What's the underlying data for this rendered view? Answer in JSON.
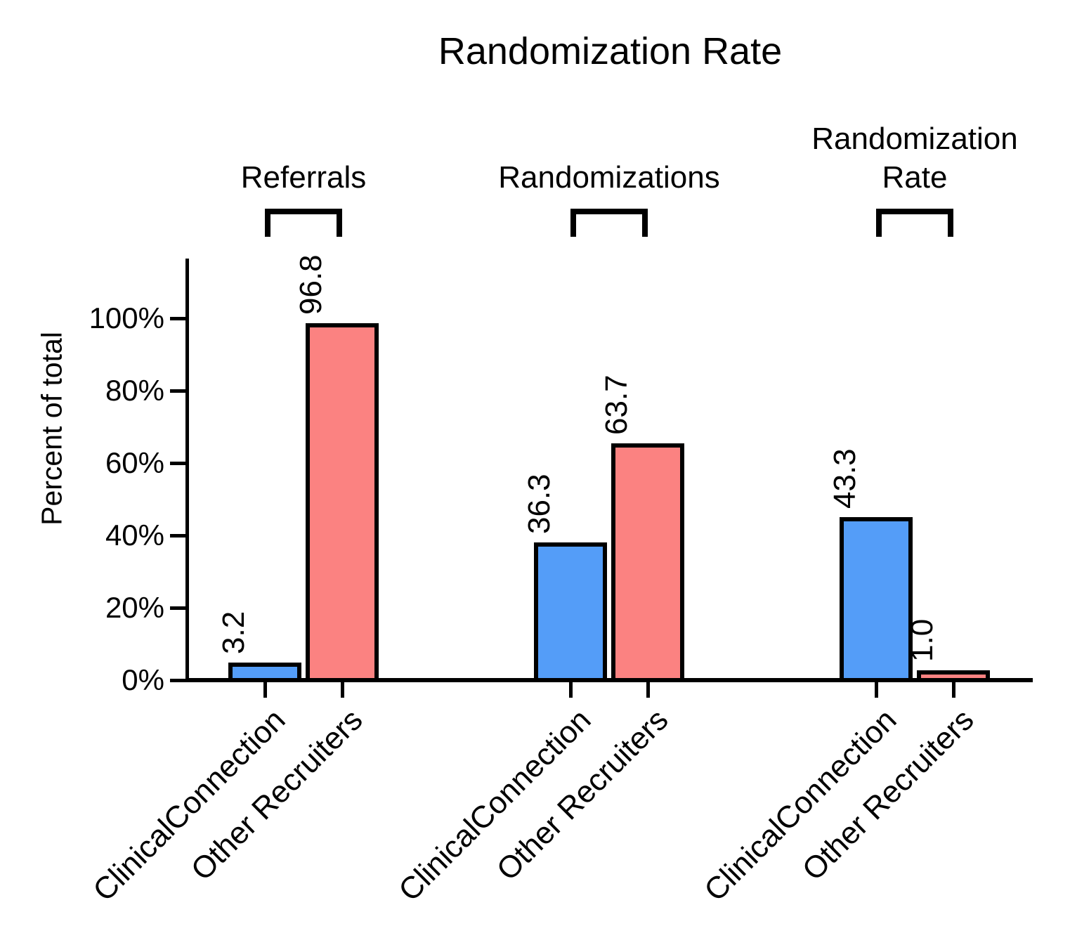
{
  "chart_data": {
    "type": "bar",
    "title": "Randomization Rate",
    "xlabel": "",
    "ylabel": "Percent of total",
    "ylim": [
      0,
      116
    ],
    "ytick_values": [
      0,
      20,
      40,
      60,
      80,
      100
    ],
    "ytick_labels": [
      "0%",
      "20%",
      "40%",
      "60%",
      "80%",
      "100%"
    ],
    "grid": false,
    "legend": "none",
    "group_labels": [
      "Referrals",
      "Randomizations",
      "Randomization Rate"
    ],
    "groups": [
      {
        "label_lines": [
          "Referrals"
        ],
        "bars": [
          {
            "category": "ClinicalConnection",
            "value": 3.2,
            "label": "3.2",
            "color_key": "clinical"
          },
          {
            "category": "Other Recruiters",
            "value": 96.8,
            "label": "96.8",
            "color_key": "other"
          }
        ]
      },
      {
        "label_lines": [
          "Randomizations"
        ],
        "bars": [
          {
            "category": "ClinicalConnection",
            "value": 36.3,
            "label": "36.3",
            "color_key": "clinical"
          },
          {
            "category": "Other Recruiters",
            "value": 63.7,
            "label": "63.7",
            "color_key": "other"
          }
        ]
      },
      {
        "label_lines": [
          "Randomization",
          "Rate"
        ],
        "bars": [
          {
            "category": "ClinicalConnection",
            "value": 43.3,
            "label": "43.3",
            "color_key": "clinical"
          },
          {
            "category": "Other Recruiters",
            "value": 1.0,
            "label": "1.0",
            "color_key": "other"
          }
        ]
      }
    ],
    "series": [
      {
        "name": "ClinicalConnection",
        "color": "#549DF8",
        "values": [
          3.2,
          36.3,
          43.3
        ]
      },
      {
        "name": "Other Recruiters",
        "color": "#FB8281",
        "values": [
          96.8,
          63.7,
          1.0
        ]
      }
    ],
    "colors": {
      "clinical": "#549DF8",
      "other": "#FB8281",
      "axis": "#000000",
      "background": "#FFFFFF"
    }
  }
}
